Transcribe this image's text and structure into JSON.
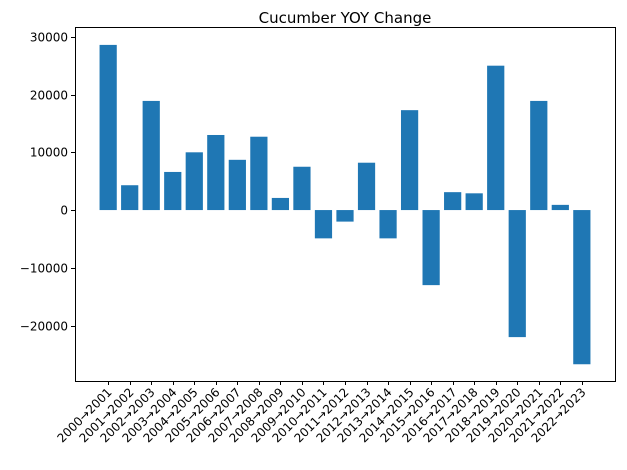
{
  "chart_data": {
    "type": "bar",
    "title": "Cucumber YOY Change",
    "xlabel": "",
    "ylabel": "",
    "categories": [
      "2000→2001",
      "2001→2002",
      "2002→2003",
      "2003→2004",
      "2004→2005",
      "2005→2006",
      "2006→2007",
      "2007→2008",
      "2008→2009",
      "2009→2010",
      "2010→2011",
      "2011→2012",
      "2012→2013",
      "2013→2014",
      "2014→2015",
      "2015→2016",
      "2016→2017",
      "2017→2018",
      "2018→2019",
      "2019→2020",
      "2020→2021",
      "2021→2022",
      "2022→2023"
    ],
    "values": [
      28600,
      4300,
      18900,
      6600,
      10000,
      13000,
      8700,
      12700,
      2100,
      7500,
      -4900,
      -2000,
      8200,
      -4900,
      17300,
      -13000,
      3100,
      2900,
      25000,
      -22000,
      18900,
      900,
      -26700
    ],
    "ylim": [
      -29600,
      31700
    ],
    "yticks": [
      -20000,
      -10000,
      0,
      10000,
      20000,
      30000
    ],
    "ytick_labels": [
      "−20000",
      "−10000",
      "0",
      "10000",
      "20000",
      "30000"
    ],
    "bar_color": "#1f77b4",
    "grid": false,
    "legend": "none"
  }
}
